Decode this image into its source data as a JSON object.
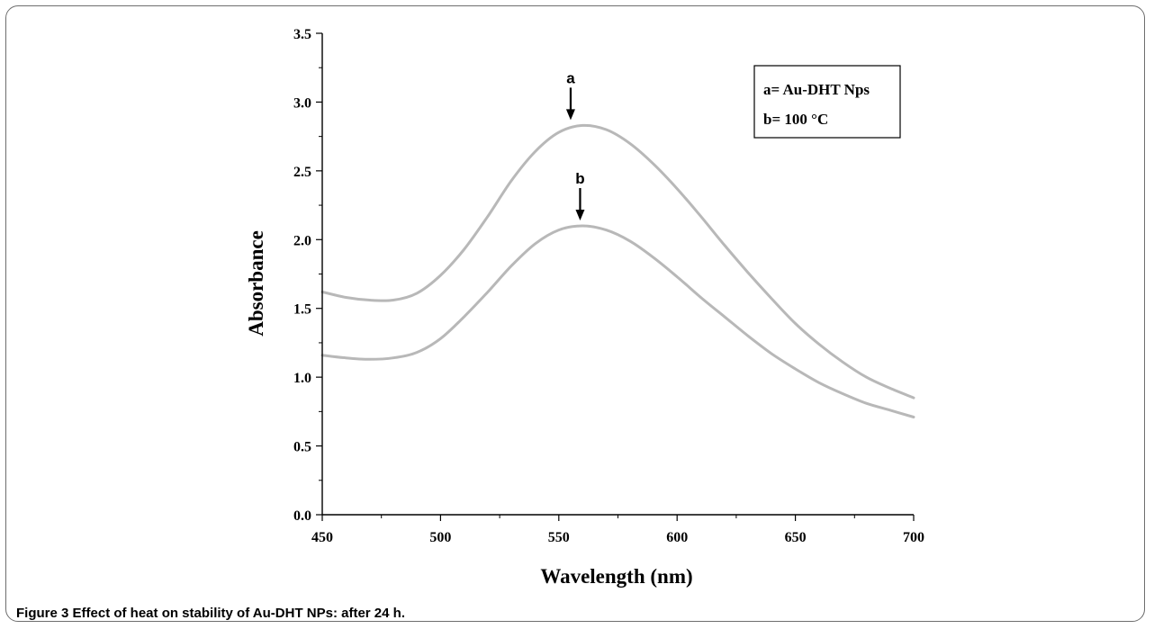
{
  "figure": {
    "caption": "Figure 3 Effect of heat on stability of Au-DHT NPs: after 24 h."
  },
  "chart_data": {
    "type": "line",
    "xlabel": "Wavelength (nm)",
    "ylabel": "Absorbance",
    "xlim": [
      450,
      700
    ],
    "ylim": [
      0,
      3.5
    ],
    "x_ticks": [
      450,
      500,
      550,
      600,
      650,
      700
    ],
    "x_tick_labels": [
      "450",
      "500",
      "550",
      "600",
      "650",
      "700"
    ],
    "y_ticks": [
      0,
      0.5,
      1.0,
      1.5,
      2.0,
      2.5,
      3.0,
      3.5
    ],
    "y_tick_labels": [
      "0.0",
      "0.5",
      "1.0",
      "1.5",
      "2.0",
      "2.5",
      "3.0",
      "3.5"
    ],
    "grid": false,
    "series_color": "#b8b8b8",
    "legend": {
      "position": "top-right",
      "entries": [
        "a= Au-DHT Nps",
        "b= 100 °C"
      ]
    },
    "series": [
      {
        "name": "a",
        "x": [
          450,
          460,
          470,
          480,
          490,
          500,
          510,
          520,
          530,
          540,
          550,
          560,
          570,
          580,
          590,
          600,
          610,
          620,
          630,
          640,
          650,
          660,
          670,
          680,
          690,
          700
        ],
        "y": [
          1.62,
          1.58,
          1.56,
          1.56,
          1.61,
          1.74,
          1.93,
          2.17,
          2.43,
          2.64,
          2.78,
          2.83,
          2.8,
          2.7,
          2.55,
          2.37,
          2.17,
          1.96,
          1.76,
          1.57,
          1.39,
          1.24,
          1.11,
          1.0,
          0.92,
          0.85
        ]
      },
      {
        "name": "b",
        "x": [
          450,
          460,
          470,
          480,
          490,
          500,
          510,
          520,
          530,
          540,
          550,
          560,
          570,
          580,
          590,
          600,
          610,
          620,
          630,
          640,
          650,
          660,
          670,
          680,
          690,
          700
        ],
        "y": [
          1.16,
          1.14,
          1.13,
          1.14,
          1.18,
          1.28,
          1.44,
          1.62,
          1.81,
          1.97,
          2.07,
          2.1,
          2.07,
          1.99,
          1.87,
          1.73,
          1.58,
          1.44,
          1.3,
          1.17,
          1.06,
          0.96,
          0.88,
          0.81,
          0.76,
          0.71
        ]
      }
    ],
    "annotations": [
      {
        "label": "a",
        "x": 555,
        "y": 2.83
      },
      {
        "label": "b",
        "x": 559,
        "y": 2.1
      }
    ]
  }
}
